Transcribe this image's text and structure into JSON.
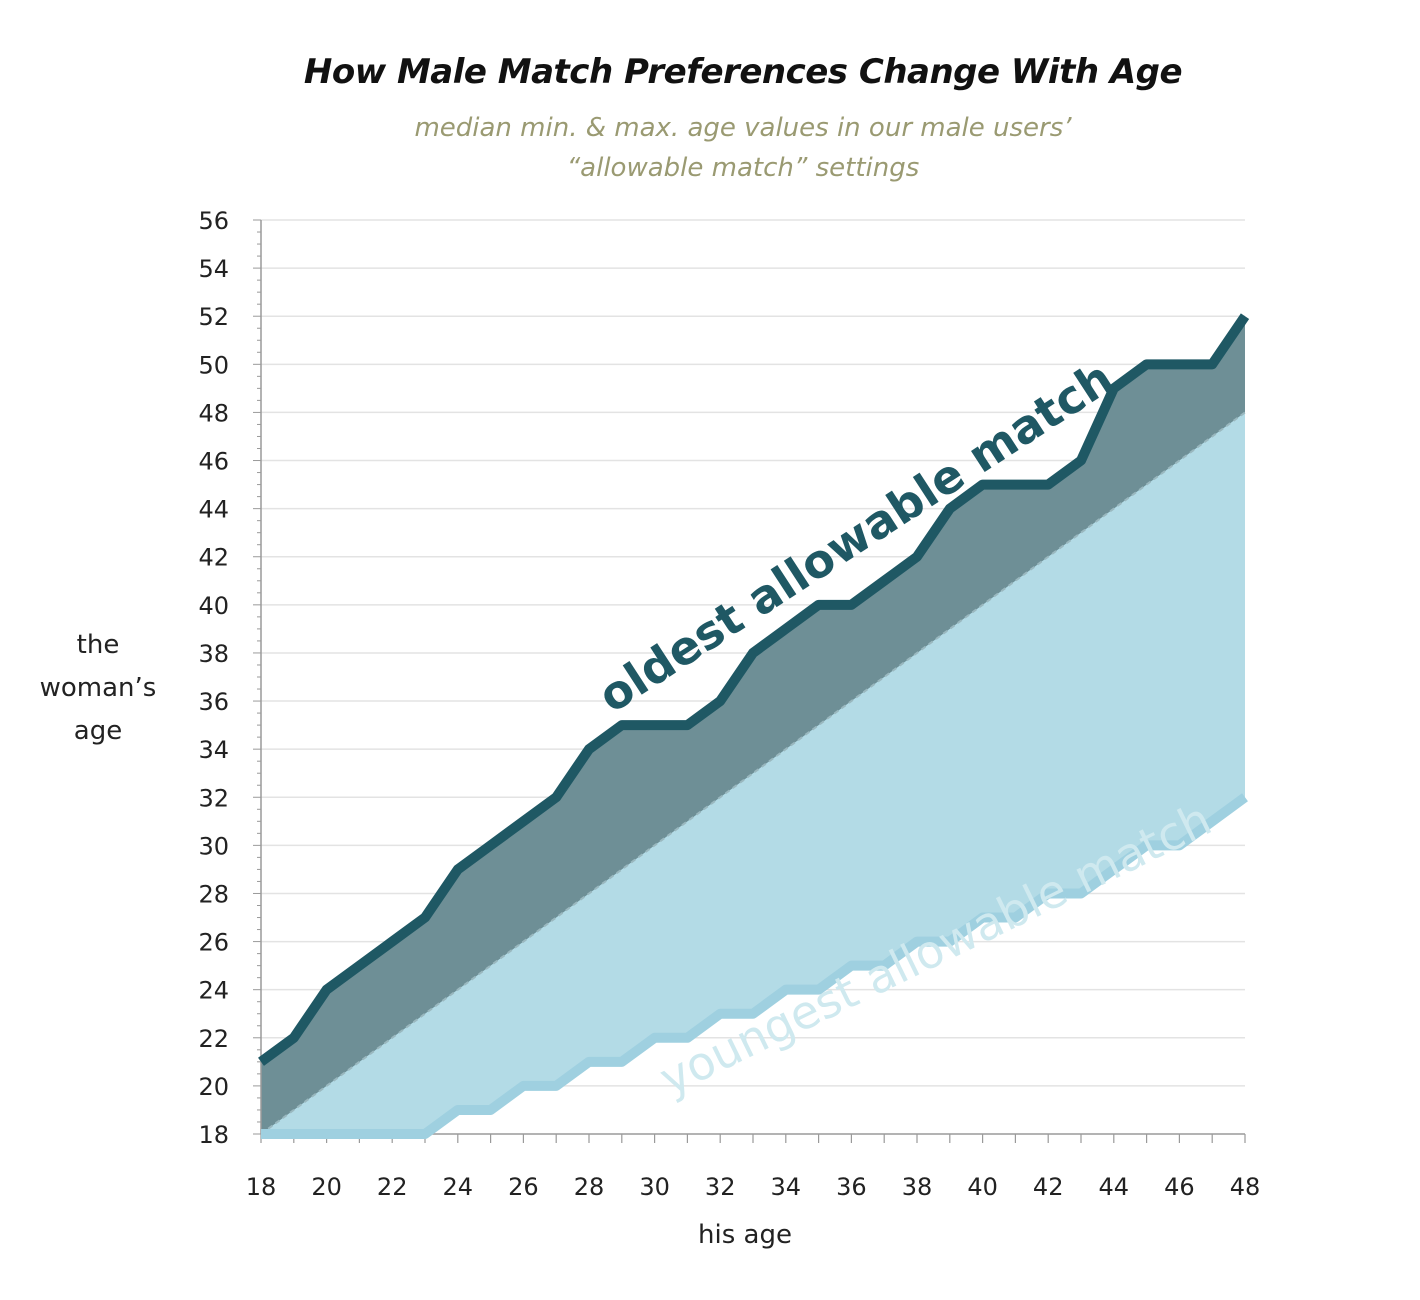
{
  "chart_data": {
    "type": "area",
    "title": "How Male Match Preferences Change With Age",
    "subtitle": [
      "median min. & max. age values in our male users’",
      "“allowable match” settings"
    ],
    "xlabel": "his age",
    "ylabel": [
      "the",
      "woman’s",
      "age"
    ],
    "xlim": [
      18,
      48
    ],
    "ylim": [
      18,
      56
    ],
    "x_ticks": [
      18,
      20,
      22,
      24,
      26,
      28,
      30,
      32,
      34,
      36,
      38,
      40,
      42,
      44,
      46,
      48
    ],
    "y_ticks": [
      18,
      20,
      22,
      24,
      26,
      28,
      30,
      32,
      34,
      36,
      38,
      40,
      42,
      44,
      46,
      48,
      50,
      52,
      54,
      56
    ],
    "grid": "horizontal",
    "x": [
      18,
      19,
      20,
      21,
      22,
      23,
      24,
      25,
      26,
      27,
      28,
      29,
      30,
      31,
      32,
      33,
      34,
      35,
      36,
      37,
      38,
      39,
      40,
      41,
      42,
      43,
      44,
      45,
      46,
      47,
      48
    ],
    "series": [
      {
        "name": "oldest allowable match",
        "color": "#1f5864",
        "fill": "#6e8f96",
        "values": [
          21,
          22,
          24,
          25,
          26,
          27,
          29,
          30,
          31,
          32,
          34,
          35,
          35,
          35,
          36,
          38,
          39,
          40,
          40,
          41,
          42,
          44,
          45,
          45,
          45,
          46,
          49,
          50,
          50,
          50,
          52
        ]
      },
      {
        "name": "youngest allowable match",
        "color": "#9fd0e0",
        "fill": "#b3dbe6",
        "values": [
          18,
          18,
          18,
          18,
          18,
          18,
          19,
          19,
          20,
          20,
          21,
          21,
          22,
          22,
          23,
          23,
          24,
          24,
          25,
          25,
          26,
          26,
          27,
          27,
          28,
          28,
          29,
          30,
          30,
          31,
          32
        ]
      }
    ],
    "reference_line": {
      "label": "",
      "type": "y=x",
      "color": "#9ab8bf"
    }
  }
}
